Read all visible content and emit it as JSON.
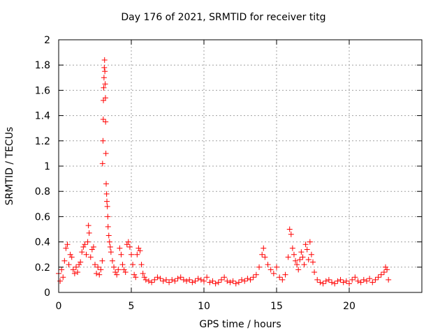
{
  "chart_data": {
    "type": "scatter",
    "title": "Day 176 of 2021, SRMTID for receiver titg",
    "xlabel": "GPS time / hours",
    "ylabel": "SRMTID / TECUs",
    "xlim": [
      0,
      25
    ],
    "ylim": [
      0,
      2
    ],
    "xticks": [
      "0",
      "5",
      "10",
      "15",
      "20"
    ],
    "yticks": [
      "0",
      "0.2",
      "0.4",
      "0.6",
      "0.8",
      "1",
      "1.2",
      "1.4",
      "1.6",
      "1.8",
      "2"
    ],
    "grid": true,
    "marker": "+",
    "color": "#ff0000",
    "series": [
      {
        "name": "SRMTID",
        "points": [
          [
            0.0,
            0.15
          ],
          [
            0.1,
            0.09
          ],
          [
            0.2,
            0.18
          ],
          [
            0.3,
            0.12
          ],
          [
            0.4,
            0.25
          ],
          [
            0.5,
            0.35
          ],
          [
            0.6,
            0.38
          ],
          [
            0.7,
            0.22
          ],
          [
            0.8,
            0.3
          ],
          [
            0.9,
            0.28
          ],
          [
            1.0,
            0.18
          ],
          [
            1.1,
            0.15
          ],
          [
            1.2,
            0.2
          ],
          [
            1.3,
            0.16
          ],
          [
            1.4,
            0.22
          ],
          [
            1.5,
            0.24
          ],
          [
            1.6,
            0.32
          ],
          [
            1.7,
            0.36
          ],
          [
            1.8,
            0.38
          ],
          [
            1.9,
            0.3
          ],
          [
            2.0,
            0.4
          ],
          [
            2.05,
            0.53
          ],
          [
            2.1,
            0.47
          ],
          [
            2.2,
            0.28
          ],
          [
            2.3,
            0.34
          ],
          [
            2.4,
            0.36
          ],
          [
            2.5,
            0.22
          ],
          [
            2.6,
            0.15
          ],
          [
            2.7,
            0.2
          ],
          [
            2.8,
            0.14
          ],
          [
            2.9,
            0.18
          ],
          [
            3.0,
            0.25
          ],
          [
            3.02,
            1.02
          ],
          [
            3.05,
            1.2
          ],
          [
            3.07,
            1.37
          ],
          [
            3.08,
            1.52
          ],
          [
            3.1,
            1.62
          ],
          [
            3.12,
            1.7
          ],
          [
            3.14,
            1.78
          ],
          [
            3.16,
            1.84
          ],
          [
            3.18,
            1.75
          ],
          [
            3.2,
            1.65
          ],
          [
            3.22,
            1.54
          ],
          [
            3.23,
            1.35
          ],
          [
            3.25,
            1.1
          ],
          [
            3.27,
            0.86
          ],
          [
            3.3,
            0.78
          ],
          [
            3.32,
            0.72
          ],
          [
            3.35,
            0.68
          ],
          [
            3.38,
            0.6
          ],
          [
            3.4,
            0.52
          ],
          [
            3.45,
            0.45
          ],
          [
            3.5,
            0.4
          ],
          [
            3.55,
            0.36
          ],
          [
            3.6,
            0.32
          ],
          [
            3.7,
            0.25
          ],
          [
            3.8,
            0.2
          ],
          [
            3.9,
            0.16
          ],
          [
            4.0,
            0.14
          ],
          [
            4.1,
            0.18
          ],
          [
            4.2,
            0.35
          ],
          [
            4.3,
            0.3
          ],
          [
            4.4,
            0.22
          ],
          [
            4.5,
            0.18
          ],
          [
            4.6,
            0.16
          ],
          [
            4.7,
            0.38
          ],
          [
            4.8,
            0.4
          ],
          [
            4.9,
            0.36
          ],
          [
            5.0,
            0.3
          ],
          [
            5.1,
            0.22
          ],
          [
            5.2,
            0.14
          ],
          [
            5.3,
            0.12
          ],
          [
            5.4,
            0.3
          ],
          [
            5.5,
            0.35
          ],
          [
            5.6,
            0.33
          ],
          [
            5.7,
            0.22
          ],
          [
            5.8,
            0.15
          ],
          [
            5.9,
            0.12
          ],
          [
            6.0,
            0.1
          ],
          [
            6.2,
            0.09
          ],
          [
            6.4,
            0.08
          ],
          [
            6.6,
            0.1
          ],
          [
            6.8,
            0.12
          ],
          [
            7.0,
            0.11
          ],
          [
            7.2,
            0.09
          ],
          [
            7.4,
            0.1
          ],
          [
            7.6,
            0.08
          ],
          [
            7.8,
            0.1
          ],
          [
            8.0,
            0.09
          ],
          [
            8.2,
            0.11
          ],
          [
            8.4,
            0.12
          ],
          [
            8.6,
            0.1
          ],
          [
            8.8,
            0.09
          ],
          [
            9.0,
            0.1
          ],
          [
            9.2,
            0.08
          ],
          [
            9.4,
            0.09
          ],
          [
            9.6,
            0.11
          ],
          [
            9.8,
            0.1
          ],
          [
            10.0,
            0.09
          ],
          [
            10.2,
            0.12
          ],
          [
            10.4,
            0.08
          ],
          [
            10.6,
            0.09
          ],
          [
            10.8,
            0.07
          ],
          [
            11.0,
            0.08
          ],
          [
            11.2,
            0.1
          ],
          [
            11.4,
            0.12
          ],
          [
            11.6,
            0.09
          ],
          [
            11.8,
            0.08
          ],
          [
            12.0,
            0.09
          ],
          [
            12.2,
            0.07
          ],
          [
            12.4,
            0.08
          ],
          [
            12.6,
            0.1
          ],
          [
            12.8,
            0.09
          ],
          [
            13.0,
            0.11
          ],
          [
            13.2,
            0.1
          ],
          [
            13.4,
            0.12
          ],
          [
            13.6,
            0.14
          ],
          [
            13.8,
            0.2
          ],
          [
            14.0,
            0.3
          ],
          [
            14.1,
            0.35
          ],
          [
            14.2,
            0.28
          ],
          [
            14.4,
            0.22
          ],
          [
            14.6,
            0.18
          ],
          [
            14.8,
            0.15
          ],
          [
            15.0,
            0.2
          ],
          [
            15.2,
            0.12
          ],
          [
            15.4,
            0.1
          ],
          [
            15.6,
            0.14
          ],
          [
            15.8,
            0.28
          ],
          [
            15.9,
            0.5
          ],
          [
            16.0,
            0.46
          ],
          [
            16.1,
            0.35
          ],
          [
            16.2,
            0.3
          ],
          [
            16.3,
            0.25
          ],
          [
            16.4,
            0.22
          ],
          [
            16.5,
            0.18
          ],
          [
            16.6,
            0.26
          ],
          [
            16.7,
            0.32
          ],
          [
            16.8,
            0.28
          ],
          [
            16.9,
            0.22
          ],
          [
            17.0,
            0.38
          ],
          [
            17.1,
            0.34
          ],
          [
            17.2,
            0.26
          ],
          [
            17.3,
            0.4
          ],
          [
            17.4,
            0.3
          ],
          [
            17.5,
            0.24
          ],
          [
            17.6,
            0.16
          ],
          [
            17.8,
            0.1
          ],
          [
            18.0,
            0.08
          ],
          [
            18.2,
            0.07
          ],
          [
            18.4,
            0.09
          ],
          [
            18.6,
            0.1
          ],
          [
            18.8,
            0.08
          ],
          [
            19.0,
            0.07
          ],
          [
            19.2,
            0.09
          ],
          [
            19.4,
            0.1
          ],
          [
            19.6,
            0.08
          ],
          [
            19.8,
            0.09
          ],
          [
            20.0,
            0.07
          ],
          [
            20.2,
            0.1
          ],
          [
            20.4,
            0.12
          ],
          [
            20.6,
            0.09
          ],
          [
            20.8,
            0.08
          ],
          [
            21.0,
            0.1
          ],
          [
            21.2,
            0.09
          ],
          [
            21.4,
            0.11
          ],
          [
            21.6,
            0.08
          ],
          [
            21.8,
            0.1
          ],
          [
            22.0,
            0.12
          ],
          [
            22.2,
            0.14
          ],
          [
            22.4,
            0.16
          ],
          [
            22.5,
            0.2
          ],
          [
            22.6,
            0.18
          ],
          [
            22.7,
            0.1
          ]
        ]
      }
    ]
  }
}
